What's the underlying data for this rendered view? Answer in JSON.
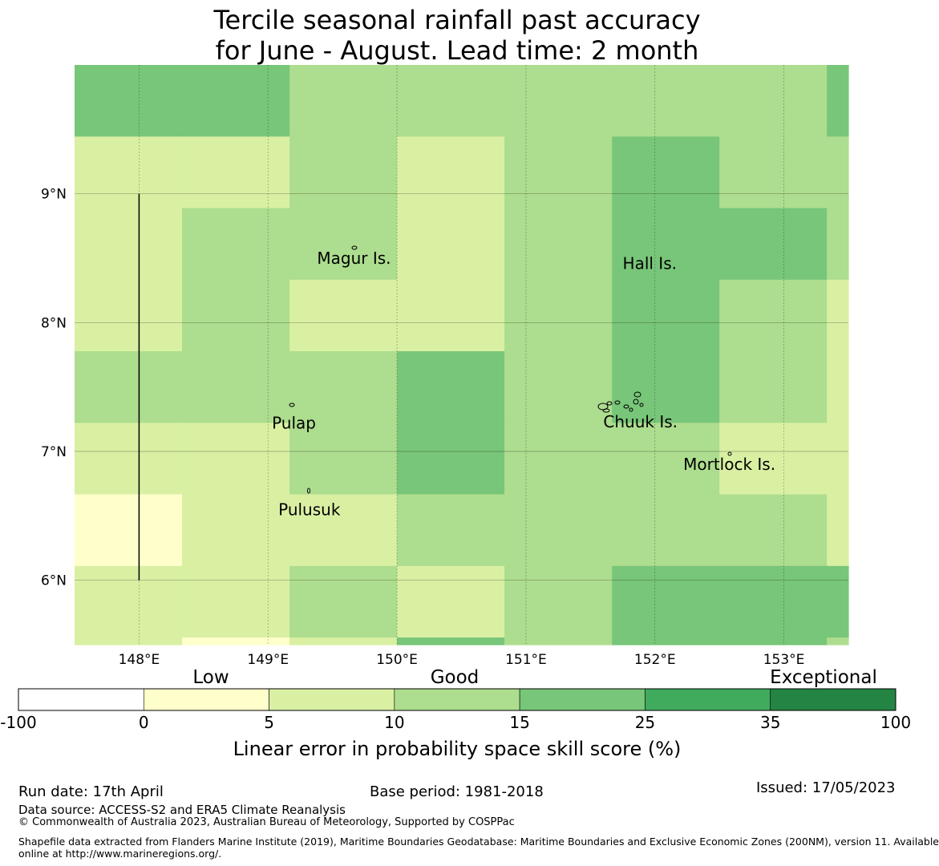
{
  "title": {
    "line1": "Tercile seasonal rainfall past accuracy",
    "line2": "for June - August. Lead time: 2 month"
  },
  "map": {
    "lon_range": [
      147.5,
      153.5
    ],
    "lat_range": [
      5.5,
      10.0
    ],
    "lon_edges": [
      147.5,
      148.333,
      149.167,
      150.0,
      150.833,
      151.667,
      152.5,
      153.333,
      153.5
    ],
    "lat_edges": [
      10.0,
      9.444,
      8.889,
      8.333,
      7.778,
      7.222,
      6.667,
      6.111,
      5.556,
      5.5
    ],
    "skill_grid": [
      [
        20,
        20,
        12,
        12,
        12,
        12,
        12,
        20
      ],
      [
        7,
        7,
        12,
        7,
        12,
        20,
        12,
        12
      ],
      [
        7,
        12,
        12,
        7,
        12,
        20,
        20,
        12
      ],
      [
        7,
        12,
        7,
        7,
        12,
        20,
        12,
        7
      ],
      [
        12,
        12,
        12,
        20,
        12,
        20,
        12,
        7
      ],
      [
        7,
        7,
        12,
        20,
        12,
        12,
        7,
        7
      ],
      [
        2,
        7,
        7,
        12,
        12,
        12,
        12,
        7
      ],
      [
        7,
        7,
        12,
        7,
        12,
        20,
        20,
        20
      ],
      [
        7,
        2,
        7,
        20,
        12,
        20,
        20,
        12
      ]
    ],
    "lon_ticks": [
      {
        "value": 148,
        "label": "148°E"
      },
      {
        "value": 149,
        "label": "149°E"
      },
      {
        "value": 150,
        "label": "150°E"
      },
      {
        "value": 151,
        "label": "151°E"
      },
      {
        "value": 152,
        "label": "152°E"
      },
      {
        "value": 153,
        "label": "153°E"
      }
    ],
    "lat_ticks": [
      {
        "value": 9,
        "label": "9°N"
      },
      {
        "value": 8,
        "label": "8°N"
      },
      {
        "value": 7,
        "label": "7°N"
      },
      {
        "value": 6,
        "label": "6°N"
      }
    ],
    "places": [
      {
        "name": "Magur Is.",
        "lon": 149.38,
        "lat": 8.5
      },
      {
        "name": "Hall Is.",
        "lon": 151.75,
        "lat": 8.46
      },
      {
        "name": "Pulap",
        "lon": 149.03,
        "lat": 7.22
      },
      {
        "name": "Chuuk Is.",
        "lon": 151.6,
        "lat": 7.23
      },
      {
        "name": "Mortlock Is.",
        "lon": 152.22,
        "lat": 6.9
      },
      {
        "name": "Pulusuk",
        "lon": 149.08,
        "lat": 6.55
      }
    ],
    "boundary_line": {
      "lon": 148.0,
      "lat_from": 6.0,
      "lat_to": 9.0
    }
  },
  "colorbar": {
    "boundaries": [
      -100,
      0,
      5,
      10,
      15,
      25,
      35,
      100
    ],
    "tick_labels": [
      "-100",
      "0",
      "5",
      "10",
      "15",
      "25",
      "35",
      "100"
    ],
    "colors": [
      "#ffffff",
      "#ffffcc",
      "#d9f0a3",
      "#addd8e",
      "#78c679",
      "#41ab5d",
      "#238443"
    ],
    "category_labels": [
      "Low",
      "Good",
      "Exceptional"
    ],
    "axis_label": "Linear error in probability space skill score (%)"
  },
  "footer": {
    "run_date": "Run date: 17th April",
    "base_period": "Base period: 1981-2018",
    "issued": "Issued: 17/05/2023",
    "data_source": "Data source: ACCESS-S2 and ERA5 Climate Reanalysis",
    "copyright": "© Commonwealth of Australia 2023, Australian Bureau of Meteorology, Supported by COSPPac",
    "shapefile_line1": "Shapefile data extracted from Flanders Marine Institute (2019), Maritime Boundaries Geodatabase: Maritime Boundaries and Exclusive Economic Zones (200NM), version 11. Available",
    "shapefile_line2": "online at http://www.marineregions.org/."
  }
}
